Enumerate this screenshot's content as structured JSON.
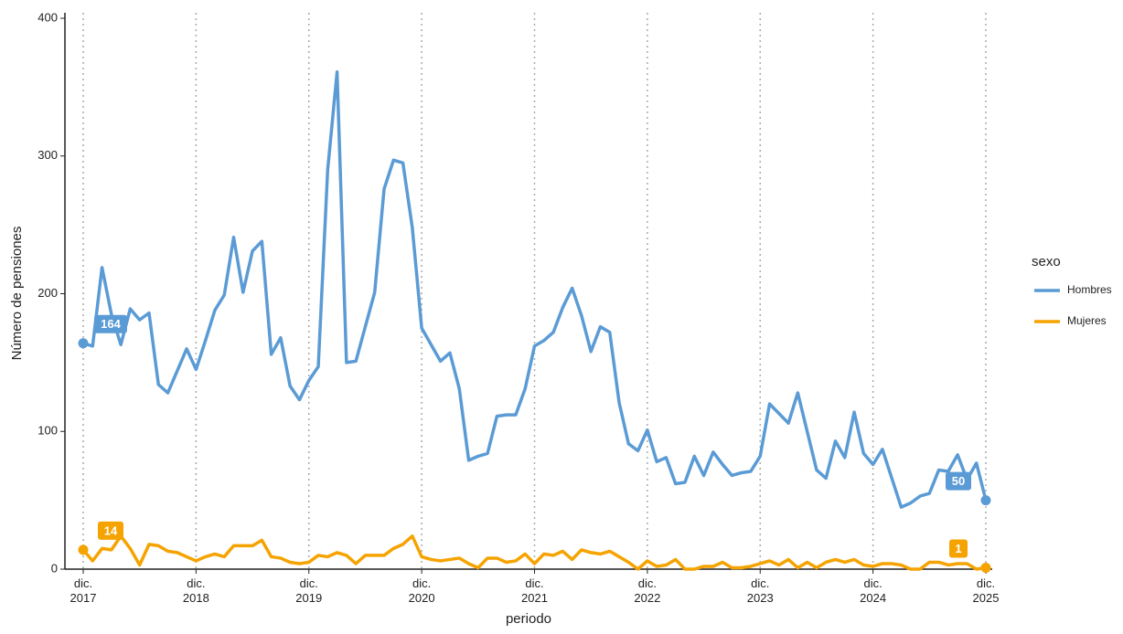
{
  "chart_data": {
    "type": "line",
    "x_label": "periodo",
    "y_label": "Número de pensiones",
    "legend_title": "sexo",
    "legend_position": "right",
    "x": [
      "2017-12",
      "2018-01",
      "2018-02",
      "2018-03",
      "2018-04",
      "2018-05",
      "2018-06",
      "2018-07",
      "2018-08",
      "2018-09",
      "2018-10",
      "2018-11",
      "2018-12",
      "2019-01",
      "2019-02",
      "2019-03",
      "2019-04",
      "2019-05",
      "2019-06",
      "2019-07",
      "2019-08",
      "2019-09",
      "2019-10",
      "2019-11",
      "2019-12",
      "2020-01",
      "2020-02",
      "2020-03",
      "2020-04",
      "2020-05",
      "2020-06",
      "2020-07",
      "2020-08",
      "2020-09",
      "2020-10",
      "2020-11",
      "2020-12",
      "2021-01",
      "2021-02",
      "2021-03",
      "2021-04",
      "2021-05",
      "2021-06",
      "2021-07",
      "2021-08",
      "2021-09",
      "2021-10",
      "2021-11",
      "2021-12",
      "2022-01",
      "2022-02",
      "2022-03",
      "2022-04",
      "2022-05",
      "2022-06",
      "2022-07",
      "2022-08",
      "2022-09",
      "2022-10",
      "2022-11",
      "2022-12",
      "2023-01",
      "2023-02",
      "2023-03",
      "2023-04",
      "2023-05",
      "2023-06",
      "2023-07",
      "2023-08",
      "2023-09",
      "2023-10",
      "2023-11",
      "2023-12",
      "2024-01",
      "2024-02",
      "2024-03",
      "2024-04",
      "2024-05",
      "2024-06",
      "2024-07",
      "2024-08",
      "2024-09",
      "2024-10",
      "2024-11",
      "2024-12",
      "2025-01",
      "2025-02",
      "2025-03",
      "2025-04",
      "2025-05",
      "2025-06",
      "2025-07",
      "2025-08",
      "2025-09",
      "2025-10",
      "2025-11",
      "2025-12"
    ],
    "series": [
      {
        "name": "Hombres",
        "color": "#5b9bd5",
        "values": [
          164,
          162,
          219,
          185,
          163,
          189,
          181,
          186,
          134,
          128,
          144,
          160,
          145,
          166,
          188,
          199,
          241,
          201,
          231,
          238,
          156,
          168,
          133,
          123,
          137,
          147,
          290,
          361,
          150,
          151,
          176,
          201,
          276,
          297,
          295,
          248,
          175,
          163,
          151,
          157,
          131,
          79,
          82,
          84,
          111,
          112,
          112,
          131,
          162,
          166,
          172,
          190,
          204,
          184,
          158,
          176,
          172,
          121,
          91,
          86,
          101,
          78,
          81,
          62,
          63,
          82,
          68,
          85,
          76,
          68,
          70,
          71,
          82,
          120,
          113,
          106,
          128,
          100,
          72,
          66,
          93,
          81,
          114,
          84,
          76,
          87,
          66,
          45,
          48,
          53,
          55,
          72,
          71,
          83,
          65,
          77,
          50
        ]
      },
      {
        "name": "Mujeres",
        "color": "#f5a300",
        "values": [
          14,
          6,
          15,
          14,
          24,
          15,
          3,
          18,
          17,
          13,
          12,
          9,
          6,
          9,
          11,
          9,
          17,
          17,
          17,
          21,
          9,
          8,
          5,
          4,
          5,
          10,
          9,
          12,
          10,
          4,
          10,
          10,
          10,
          15,
          18,
          24,
          9,
          7,
          6,
          7,
          8,
          4,
          1,
          8,
          8,
          5,
          6,
          11,
          4,
          11,
          10,
          13,
          7,
          14,
          12,
          11,
          13,
          9,
          5,
          0,
          6,
          2,
          3,
          7,
          0,
          0,
          2,
          2,
          5,
          1,
          1,
          2,
          4,
          6,
          3,
          7,
          1,
          5,
          1,
          5,
          7,
          5,
          7,
          3,
          2,
          4,
          4,
          3,
          0,
          0,
          5,
          5,
          3,
          4,
          4,
          0,
          1
        ]
      }
    ],
    "xticks": [
      {
        "value": "2017-12",
        "label": "dic.\n2017"
      },
      {
        "value": "2018-12",
        "label": "dic.\n2018"
      },
      {
        "value": "2019-12",
        "label": "dic.\n2019"
      },
      {
        "value": "2020-12",
        "label": "dic.\n2020"
      },
      {
        "value": "2021-12",
        "label": "dic.\n2021"
      },
      {
        "value": "2022-12",
        "label": "dic.\n2022"
      },
      {
        "value": "2023-12",
        "label": "dic.\n2023"
      },
      {
        "value": "2024-12",
        "label": "dic.\n2024"
      },
      {
        "value": "2025-12",
        "label": "dic.\n2025"
      }
    ],
    "ylim": [
      0,
      400
    ],
    "yticks": [
      0,
      100,
      200,
      300,
      400
    ],
    "x_grid": true
  }
}
